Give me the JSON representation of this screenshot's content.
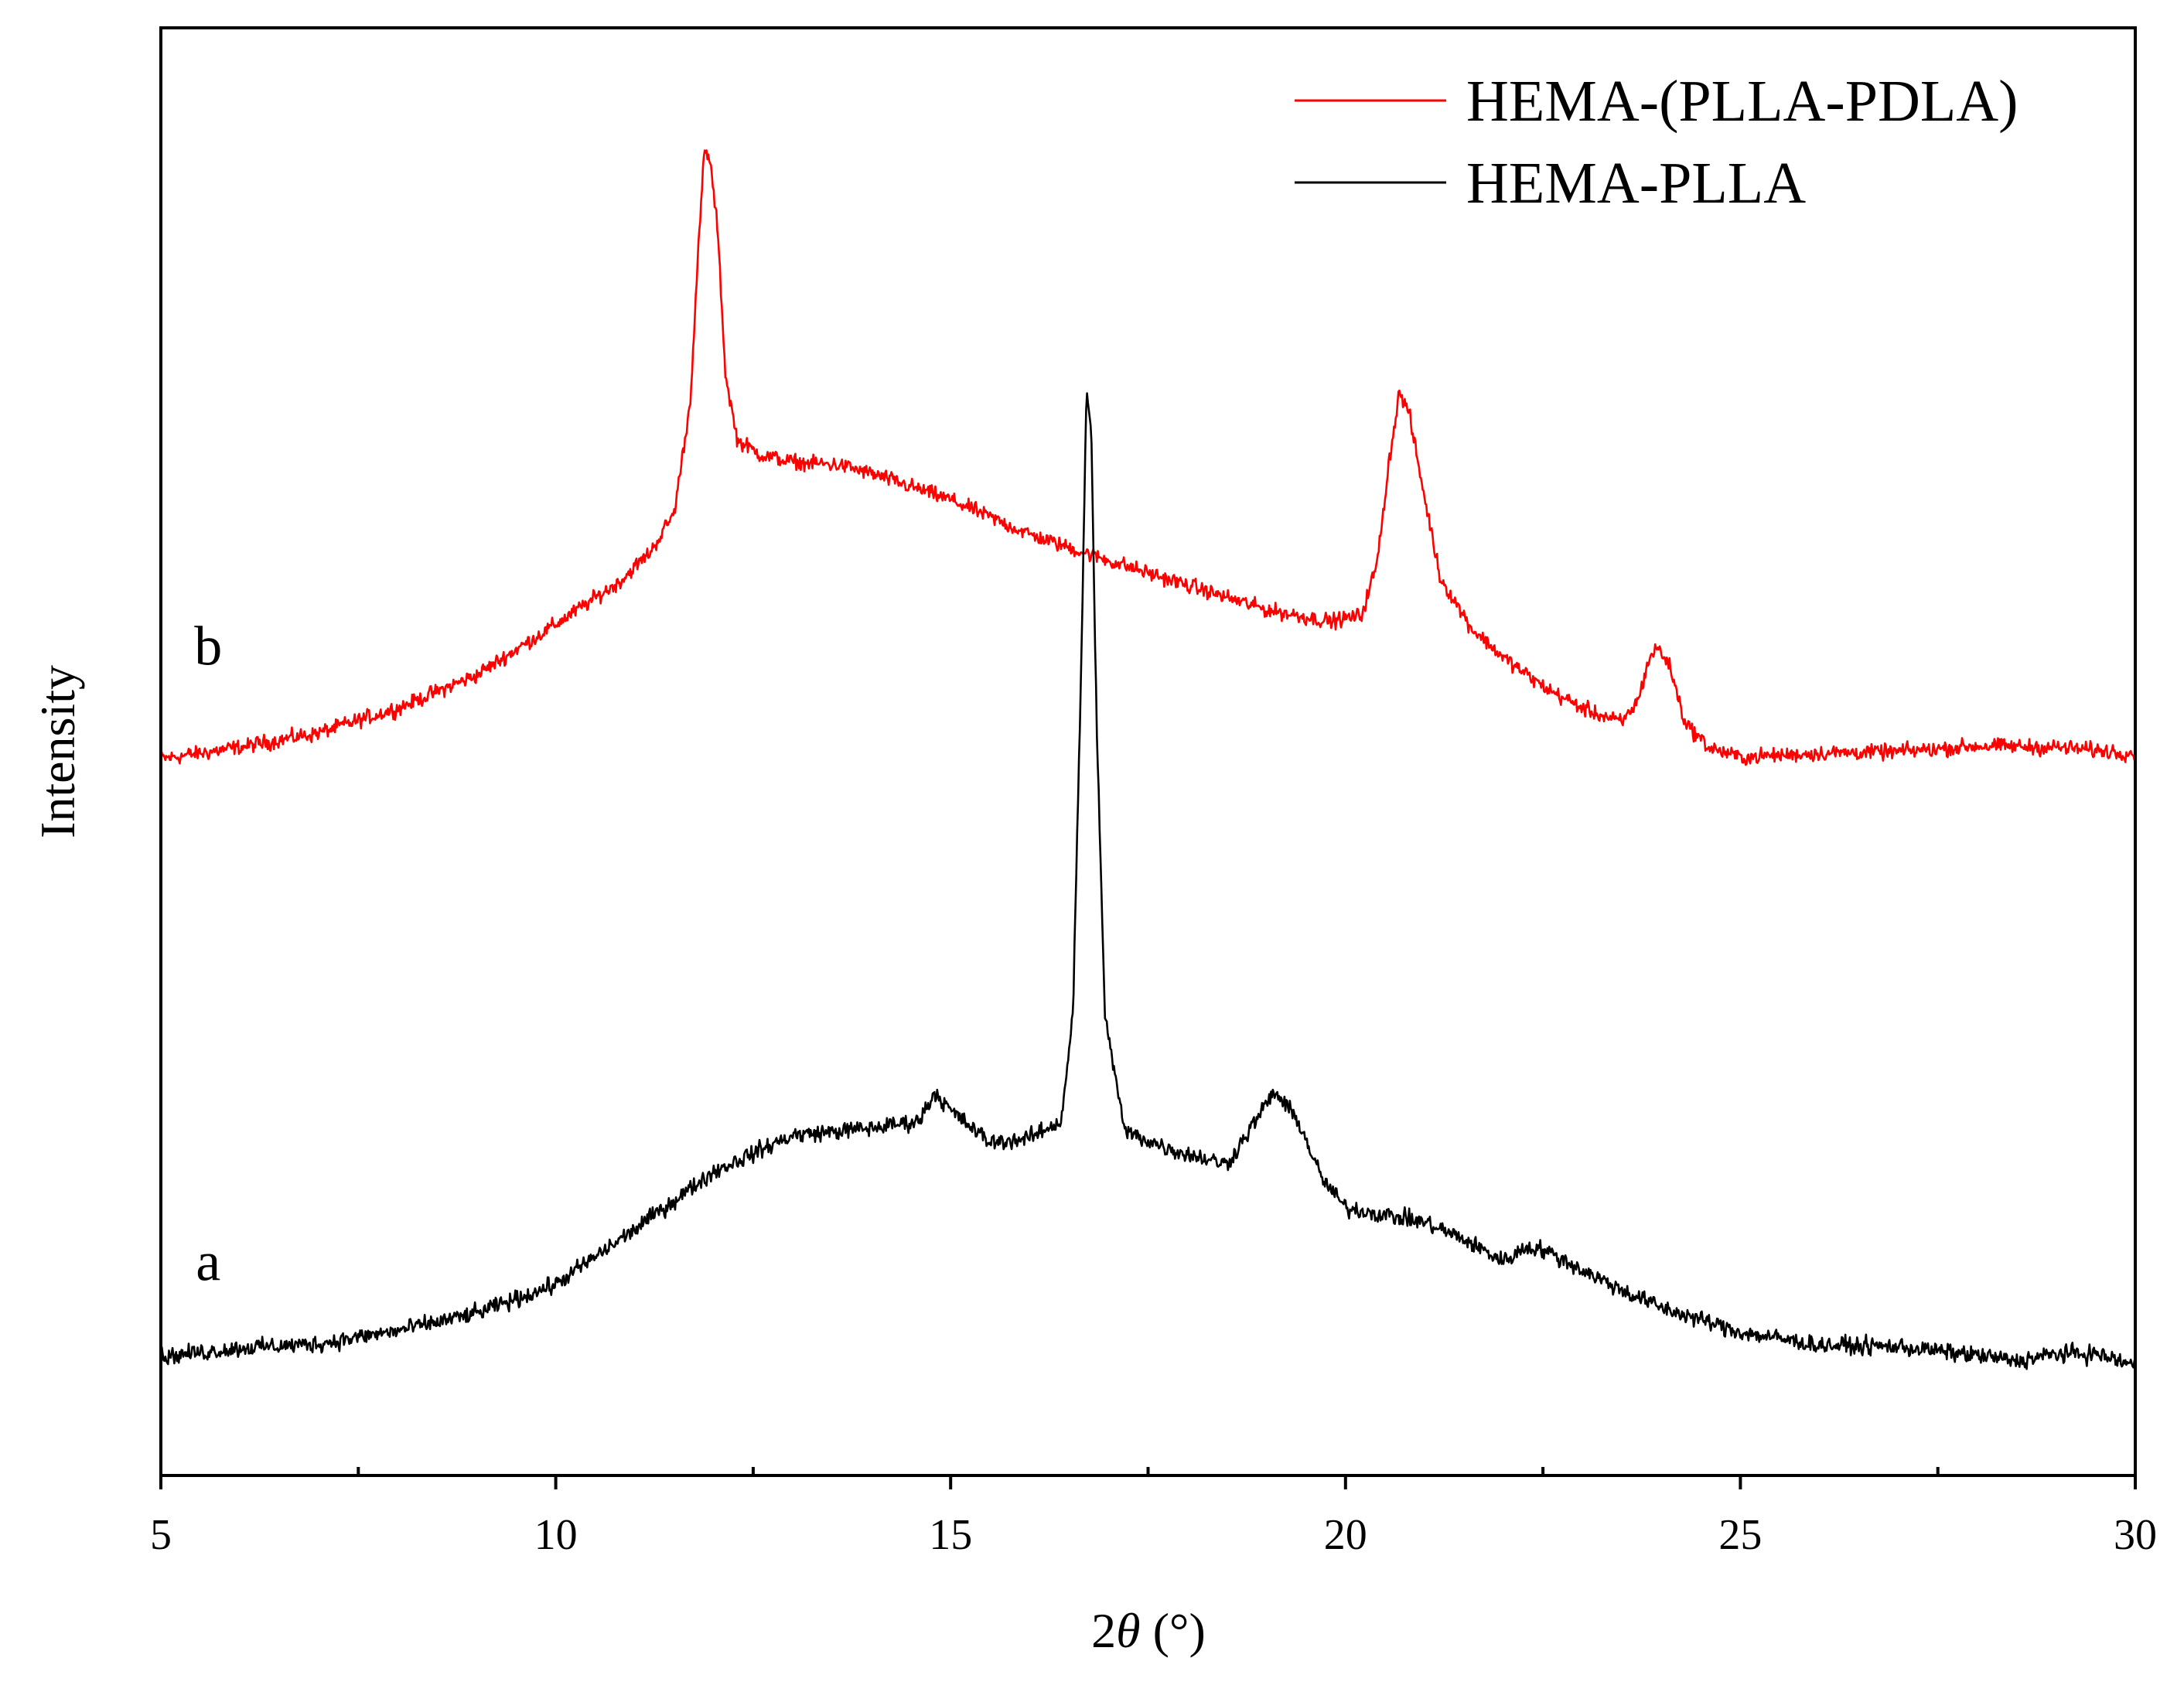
{
  "chart_data": {
    "type": "line",
    "xlabel_prefix": "2",
    "xlabel_theta": "θ",
    "xlabel_unit": " (°)",
    "ylabel": "Intensity",
    "xlim": [
      5,
      30
    ],
    "ylim": [
      0,
      100
    ],
    "x_ticks": [
      5,
      10,
      15,
      20,
      25,
      30
    ],
    "x_minor_ticks": [
      7.5,
      12.5,
      17.5,
      22.5,
      27.5
    ],
    "y_ticks_shown": false,
    "grid": false,
    "legend_position": "top-right",
    "series": [
      {
        "name": "HEMA-(PLLA-PDLA)",
        "color": "#ff0000",
        "curve_label": "b",
        "curve_label_x": 5.6,
        "curve_label_y": 56,
        "noise": 0.9,
        "points": [
          [
            5,
            49.5
          ],
          [
            6,
            50.3
          ],
          [
            7,
            51.3
          ],
          [
            8,
            53.0
          ],
          [
            9,
            55.3
          ],
          [
            10,
            58.8
          ],
          [
            10.8,
            61.7
          ],
          [
            11.2,
            63.8
          ],
          [
            11.5,
            66.5
          ],
          [
            11.7,
            74
          ],
          [
            11.82,
            86
          ],
          [
            11.88,
            91.4
          ],
          [
            11.95,
            91.0
          ],
          [
            12.05,
            86
          ],
          [
            12.15,
            76
          ],
          [
            12.3,
            71.5
          ],
          [
            12.6,
            70.5
          ],
          [
            13.0,
            70.0
          ],
          [
            13.6,
            69.8
          ],
          [
            14.0,
            69.2
          ],
          [
            15.0,
            67.4
          ],
          [
            16.0,
            65.0
          ],
          [
            17.0,
            63.2
          ],
          [
            18.0,
            61.5
          ],
          [
            19.0,
            59.8
          ],
          [
            19.8,
            59.0
          ],
          [
            20.2,
            59.4
          ],
          [
            20.4,
            63
          ],
          [
            20.55,
            70
          ],
          [
            20.68,
            74.8
          ],
          [
            20.8,
            73.5
          ],
          [
            20.95,
            69
          ],
          [
            21.2,
            62
          ],
          [
            21.6,
            58.5
          ],
          [
            22.0,
            56.5
          ],
          [
            22.5,
            54.5
          ],
          [
            23.0,
            53.0
          ],
          [
            23.5,
            52.0
          ],
          [
            23.7,
            53.5
          ],
          [
            23.85,
            56.5
          ],
          [
            23.95,
            57.2
          ],
          [
            24.1,
            56
          ],
          [
            24.3,
            52
          ],
          [
            24.6,
            50.3
          ],
          [
            25.0,
            49.6
          ],
          [
            26.0,
            49.9
          ],
          [
            27.0,
            50.0
          ],
          [
            28.0,
            50.4
          ],
          [
            29.0,
            50.3
          ],
          [
            30.0,
            49.9
          ]
        ]
      },
      {
        "name": "HEMA-PLLA",
        "color": "#000000",
        "curve_label": "a",
        "curve_label_x": 5.6,
        "curve_label_y": 13.5,
        "noise": 1.0,
        "points": [
          [
            5,
            8.2
          ],
          [
            6,
            8.8
          ],
          [
            7,
            9.1
          ],
          [
            8,
            10.0
          ],
          [
            9,
            11.2
          ],
          [
            10,
            13.2
          ],
          [
            11,
            17.0
          ],
          [
            12,
            21.0
          ],
          [
            13,
            23.5
          ],
          [
            14,
            24.0
          ],
          [
            14.6,
            24.5
          ],
          [
            14.8,
            26.5
          ],
          [
            15.0,
            25.2
          ],
          [
            15.5,
            23.0
          ],
          [
            16.0,
            23.3
          ],
          [
            16.4,
            24.5
          ],
          [
            16.55,
            32
          ],
          [
            16.65,
            55
          ],
          [
            16.72,
            75
          ],
          [
            16.78,
            72
          ],
          [
            16.85,
            52
          ],
          [
            16.95,
            32
          ],
          [
            17.2,
            23.8
          ],
          [
            17.8,
            22.5
          ],
          [
            18.5,
            21.5
          ],
          [
            18.8,
            24
          ],
          [
            19.1,
            26.5
          ],
          [
            19.4,
            24.5
          ],
          [
            19.7,
            20.5
          ],
          [
            20.0,
            18.5
          ],
          [
            20.5,
            18.0
          ],
          [
            21.0,
            17.5
          ],
          [
            21.5,
            16.3
          ],
          [
            22.0,
            14.8
          ],
          [
            22.3,
            15.8
          ],
          [
            22.5,
            15.6
          ],
          [
            23.0,
            14.2
          ],
          [
            23.5,
            12.8
          ],
          [
            24.0,
            11.6
          ],
          [
            25.0,
            9.9
          ],
          [
            26.0,
            9.0
          ],
          [
            27.0,
            8.9
          ],
          [
            28.0,
            8.3
          ],
          [
            28.5,
            7.9
          ],
          [
            29.0,
            8.4
          ],
          [
            29.5,
            8.4
          ],
          [
            30.0,
            7.6
          ]
        ]
      }
    ]
  }
}
